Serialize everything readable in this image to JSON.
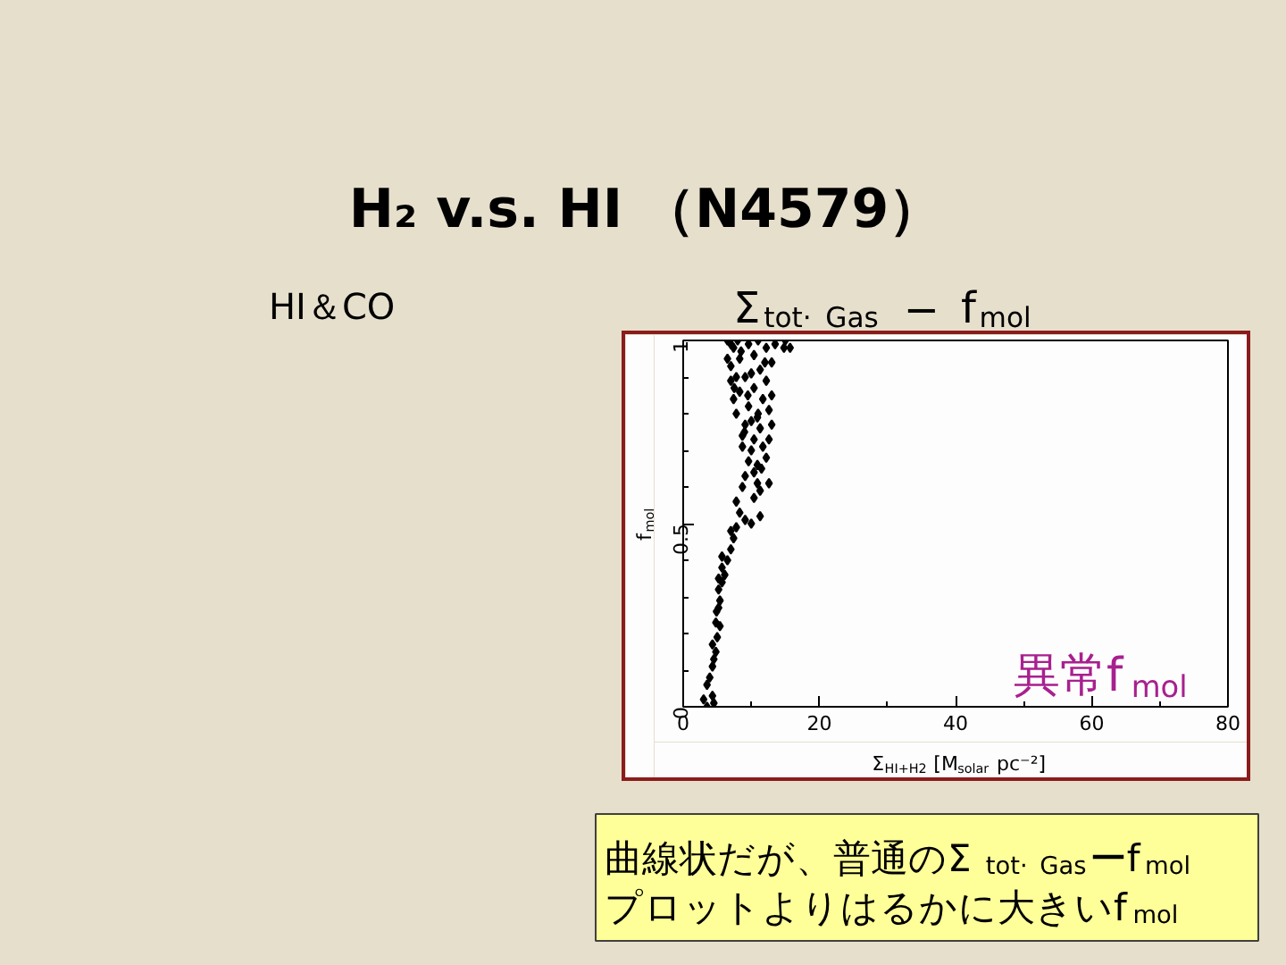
{
  "chart_data": {
    "type": "scatter",
    "title": "H₂ v.s. HI （N4579）",
    "subtitle": "Σ$_{tot· Gas}$ − f$_{mol}$",
    "xlabel": "Σ$_{HI+H2}$ [M$_{solar}$ pc⁻²]",
    "ylabel": "f$_{mol}$",
    "annotations": [
      "HI＆CO",
      "異常f$_{mol}$",
      "曲線状だが、普通のΣ$_{tot· Gas}$ーf$_{mol}$\nプロットよりはるかに大きいf$_{mol}$"
    ],
    "x": [
      3.5,
      4.5,
      3.0,
      4.3,
      3.5,
      3.9,
      4.3,
      4.5,
      4.8,
      4.3,
      5.0,
      5.4,
      4.8,
      4.9,
      5.2,
      5.4,
      5.2,
      5.7,
      5.2,
      6.1,
      5.7,
      6.5,
      5.7,
      7.0,
      7.4,
      7.0,
      7.8,
      10.0,
      9.1,
      11.3,
      8.3,
      7.8,
      10.4,
      11.3,
      8.7,
      10.9,
      12.6,
      9.1,
      10.4,
      10.9,
      9.6,
      12.2,
      10.0,
      8.7,
      11.7,
      12.6,
      10.4,
      8.7,
      11.3,
      13.0,
      9.1,
      10.9,
      7.8,
      12.6,
      9.6,
      7.4,
      11.7,
      13.0,
      8.3,
      10.4,
      7.0,
      12.2,
      7.8,
      9.1,
      11.3,
      7.0,
      13.0,
      6.5,
      8.3,
      10.4,
      7.4,
      12.2,
      14.8,
      15.7,
      7.0,
      9.6,
      13.5,
      11.0,
      8.0,
      6.5,
      15.0,
      9.5,
      11.0,
      12.0,
      8.5,
      10.0,
      7.5,
      9.0,
      11.5,
      10.0
    ],
    "values": [
      0.0,
      0.01,
      0.02,
      0.03,
      0.06,
      0.08,
      0.11,
      0.13,
      0.15,
      0.17,
      0.19,
      0.22,
      0.23,
      0.26,
      0.27,
      0.29,
      0.32,
      0.34,
      0.35,
      0.36,
      0.38,
      0.4,
      0.41,
      0.43,
      0.46,
      0.48,
      0.49,
      0.5,
      0.51,
      0.52,
      0.53,
      0.56,
      0.57,
      0.59,
      0.6,
      0.61,
      0.61,
      0.63,
      0.64,
      0.66,
      0.67,
      0.68,
      0.7,
      0.71,
      0.71,
      0.73,
      0.73,
      0.74,
      0.76,
      0.77,
      0.77,
      0.79,
      0.8,
      0.81,
      0.82,
      0.84,
      0.84,
      0.85,
      0.86,
      0.87,
      0.89,
      0.89,
      0.9,
      0.9,
      0.92,
      0.93,
      0.94,
      0.95,
      0.95,
      0.96,
      0.98,
      0.98,
      0.98,
      0.98,
      0.99,
      0.99,
      0.99,
      1.0,
      1.0,
      1.0,
      1.0,
      0.85,
      0.8,
      0.94,
      0.97,
      0.91,
      0.87,
      0.75,
      0.65,
      0.78
    ],
    "color": "#000000",
    "marker": "diamond",
    "xlim": [
      0,
      80
    ],
    "ylim": [
      0,
      1
    ],
    "xticks": [
      0,
      {
        "value": 10,
        "label": null
      },
      20,
      {
        "value": 30,
        "label": null
      },
      40,
      {
        "value": 50,
        "label": null
      },
      60,
      {
        "value": 70,
        "label": null
      },
      80
    ],
    "yticks": [
      0,
      {
        "value": 0.1,
        "label": null
      },
      {
        "value": 0.2,
        "label": null
      },
      {
        "value": 0.3,
        "label": null
      },
      {
        "value": 0.4,
        "label": null
      },
      0.5,
      {
        "value": 0.6,
        "label": null
      },
      {
        "value": 0.7,
        "label": null
      },
      {
        "value": 0.8,
        "label": null
      },
      {
        "value": 0.9,
        "label": null
      },
      1
    ]
  }
}
